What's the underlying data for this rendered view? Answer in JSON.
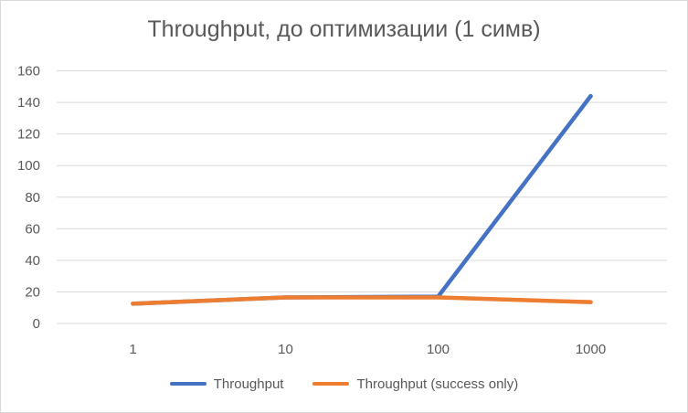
{
  "chart_data": {
    "type": "line",
    "title": "Throughput, до оптимизации (1 симв)",
    "categories": [
      "1",
      "10",
      "100",
      "1000"
    ],
    "series": [
      {
        "name": "Throughput",
        "color": "#4472C4",
        "values": [
          12.5,
          16.5,
          17,
          144
        ]
      },
      {
        "name": "Throughput (success only)",
        "color": "#ED7D31",
        "values": [
          12.5,
          16.5,
          16.5,
          13.5
        ]
      }
    ],
    "ylim": [
      0,
      160
    ],
    "yticks": [
      "0",
      "20",
      "40",
      "60",
      "80",
      "100",
      "120",
      "140",
      "160"
    ],
    "grid": true,
    "legend_position": "bottom",
    "xlabel": "",
    "ylabel": ""
  }
}
